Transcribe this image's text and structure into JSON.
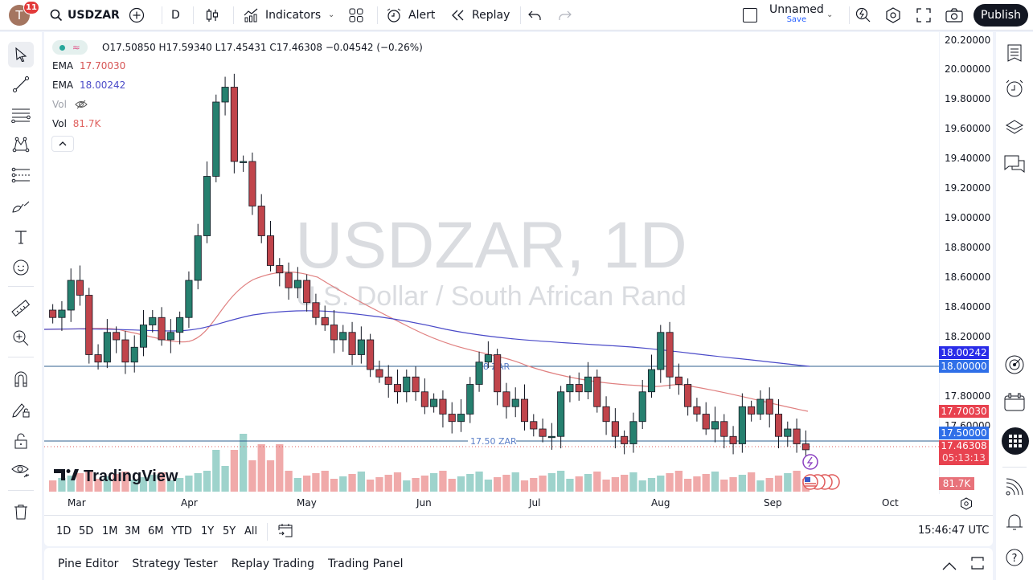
{
  "topbar": {
    "avatar_letter": "T",
    "notification_count": "11",
    "symbol": "USDZAR",
    "interval": "D",
    "indicators_label": "Indicators",
    "alert_label": "Alert",
    "replay_label": "Replay",
    "layout_name": "Unnamed",
    "save_label": "Save",
    "publish_label": "Publish"
  },
  "legend": {
    "ohlc": "O17.50850 H17.59340 L17.45431 C17.46308 −0.04542 (−0.26%)",
    "ema1_label": "EMA",
    "ema1_value": "17.70030",
    "ema2_label": "EMA",
    "ema2_value": "18.00242",
    "vol_hidden_label": "Vol",
    "vol_label": "Vol",
    "vol_value": "81.7K"
  },
  "watermark": {
    "title": "USDZAR, 1D",
    "subtitle": "U.S. Dollar / South African Rand"
  },
  "price_axis": {
    "ticks": [
      "20.20000",
      "20.00000",
      "19.80000",
      "19.60000",
      "19.40000",
      "19.20000",
      "19.00000",
      "18.80000",
      "18.60000",
      "18.40000",
      "18.20000",
      "17.80000",
      "17.60000"
    ],
    "labels": {
      "ema_slow": "18.00242",
      "level_18": "18.00000",
      "ema_fast": "17.70030",
      "level_1750": "17.50000",
      "last_price": "17.46308",
      "countdown": "05:13:13",
      "volume": "81.7K"
    },
    "colors": {
      "ema_slow": "#2a2ce8",
      "level": "#2f6fe8",
      "red": "#e8424f",
      "volume": "#e8727a"
    }
  },
  "time_axis": {
    "labels": [
      "Mar",
      "Apr",
      "May",
      "Jun",
      "Jul",
      "Aug",
      "Sep",
      "Oct"
    ]
  },
  "horizontal_lines": [
    {
      "label": "18 ZAR",
      "price": 18.0
    },
    {
      "label": "17.50 ZAR",
      "price": 17.5
    }
  ],
  "range_bar": {
    "ranges": [
      "1D",
      "5D",
      "1M",
      "3M",
      "6M",
      "YTD",
      "1Y",
      "5Y",
      "All"
    ],
    "clock": "15:46:47 UTC"
  },
  "bottom_panel": {
    "tabs": [
      "Pine Editor",
      "Strategy Tester",
      "Replay Trading",
      "Trading Panel"
    ]
  },
  "branding": {
    "logo_text": "TradingView"
  },
  "chart_data": {
    "type": "candlestick",
    "title": "USDZAR, 1D",
    "subtitle": "U.S. Dollar / South African Rand",
    "x_labels": [
      "Mar",
      "Apr",
      "May",
      "Jun",
      "Jul",
      "Aug",
      "Sep",
      "Oct"
    ],
    "ylim": [
      17.3,
      20.25
    ],
    "indicators": [
      {
        "name": "EMA (fast)",
        "last": 17.7003,
        "color": "#e05b5b"
      },
      {
        "name": "EMA (slow)",
        "last": 18.00242,
        "color": "#4a4ac8"
      }
    ],
    "last": {
      "open": 17.5085,
      "high": 17.5934,
      "low": 17.45431,
      "close": 17.46308,
      "change": -0.04542,
      "change_pct": -0.26
    },
    "approx_closes": [
      18.35,
      18.4,
      18.6,
      18.5,
      18.1,
      18.05,
      18.25,
      18.2,
      18.05,
      18.15,
      18.3,
      18.35,
      18.2,
      18.25,
      18.35,
      18.6,
      18.9,
      19.3,
      19.8,
      19.9,
      19.4,
      19.4,
      19.1,
      18.9,
      18.7,
      18.65,
      18.55,
      18.6,
      18.45,
      18.35,
      18.3,
      18.2,
      18.25,
      18.1,
      18.2,
      18.0,
      17.95,
      17.9,
      17.85,
      17.95,
      17.85,
      17.75,
      17.8,
      17.7,
      17.65,
      17.7,
      17.9,
      18.05,
      18.1,
      17.85,
      17.75,
      17.8,
      17.65,
      17.6,
      17.55,
      17.55,
      17.85,
      17.9,
      17.85,
      17.95,
      17.75,
      17.65,
      17.55,
      17.5,
      17.65,
      17.85,
      18.0,
      18.25,
      17.95,
      17.9,
      17.75,
      17.7,
      17.6,
      17.65,
      17.55,
      17.5,
      17.75,
      17.7,
      17.8,
      17.7,
      17.55,
      17.6,
      17.5,
      17.46
    ]
  }
}
